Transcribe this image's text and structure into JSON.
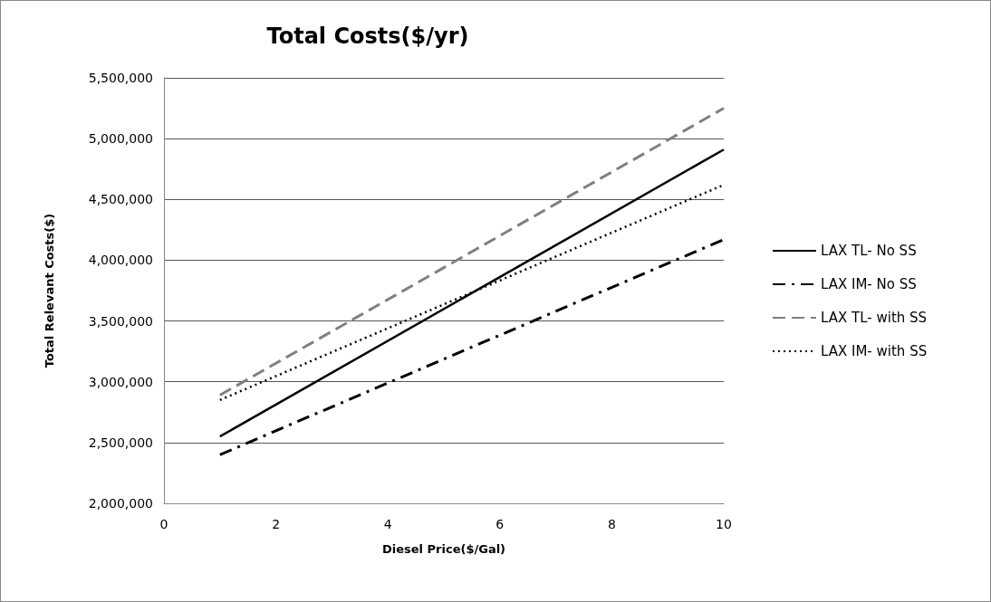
{
  "chart_data": {
    "type": "line",
    "title": "Total Costs($/yr)",
    "xlabel": "Diesel Price($/Gal)",
    "ylabel": "Total Relevant Costs($)",
    "xlim": [
      0,
      10
    ],
    "xticks": [
      0,
      2,
      4,
      6,
      8,
      10
    ],
    "ylim": [
      2000000,
      5500000
    ],
    "yticks": [
      {
        "value": 2000000,
        "label": "2,000,000"
      },
      {
        "value": 2500000,
        "label": "2,500,000"
      },
      {
        "value": 3000000,
        "label": "3,000,000"
      },
      {
        "value": 3500000,
        "label": "3,500,000"
      },
      {
        "value": 4000000,
        "label": "4,000,000"
      },
      {
        "value": 4500000,
        "label": "4,500,000"
      },
      {
        "value": 5000000,
        "label": "5,000,000"
      },
      {
        "value": 5500000,
        "label": "5,500,000"
      }
    ],
    "x": [
      1,
      10
    ],
    "grid": "y",
    "legend": "right",
    "marker": "none",
    "series": [
      {
        "name": "LAX TL- No SS",
        "color": "#000000",
        "line_style": "solid",
        "values": [
          2550000,
          4910000
        ]
      },
      {
        "name": "LAX IM- No SS",
        "color": "#000000",
        "line_style": "dashdot",
        "values": [
          2400000,
          4170000
        ]
      },
      {
        "name": "LAX TL- with SS",
        "color": "#808080",
        "line_style": "dashed",
        "values": [
          2890000,
          5250000
        ]
      },
      {
        "name": "LAX IM- with SS",
        "color": "#000000",
        "line_style": "dotted",
        "values": [
          2850000,
          4620000
        ]
      }
    ]
  }
}
